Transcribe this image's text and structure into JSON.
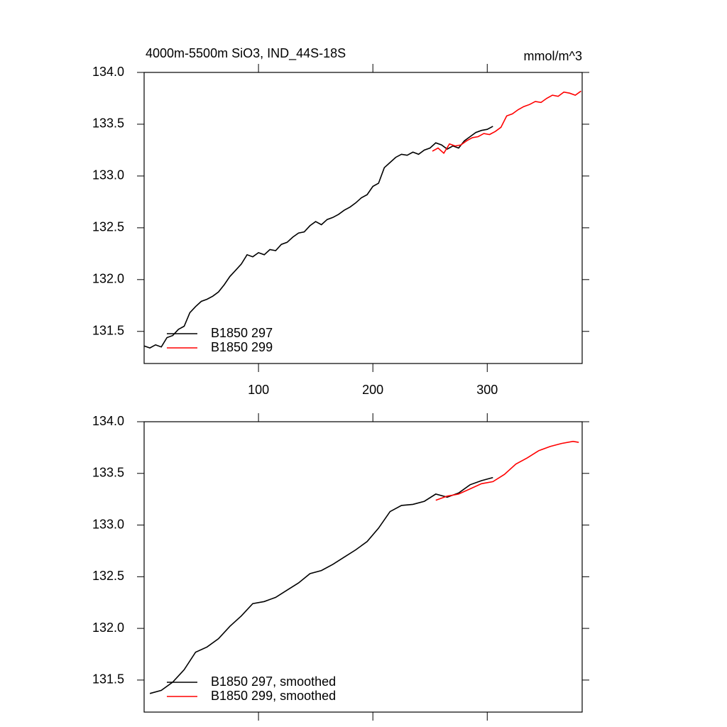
{
  "chart_data": [
    {
      "type": "line",
      "title": "4000m-5500m SiO3, IND_44S-18S",
      "units": "mmol/m^3",
      "xlim": [
        0,
        383
      ],
      "ylim": [
        131.19,
        134.0
      ],
      "xticks": [
        100,
        200,
        300
      ],
      "xtick_labels": true,
      "yticks": [
        {
          "value": 131.5,
          "label": "131.5"
        },
        {
          "value": 132,
          "label": "132.0"
        },
        {
          "value": 132.5,
          "label": "132.5"
        },
        {
          "value": 133,
          "label": "133.0"
        },
        {
          "value": 133.5,
          "label": "133.5"
        },
        {
          "value": 134,
          "label": "134.0"
        }
      ],
      "legend": "lower left",
      "series": [
        {
          "name": "B1850 297",
          "color": "#000000",
          "x": [
            0,
            5,
            10,
            15,
            20,
            25,
            30,
            35,
            40,
            45,
            50,
            55,
            60,
            65,
            70,
            75,
            80,
            85,
            90,
            95,
            100,
            105,
            110,
            115,
            120,
            125,
            130,
            135,
            140,
            145,
            150,
            155,
            160,
            165,
            170,
            175,
            180,
            185,
            190,
            195,
            200,
            205,
            210,
            215,
            220,
            225,
            230,
            235,
            240,
            245,
            250,
            255,
            260,
            265,
            270,
            275,
            280,
            285,
            290,
            295,
            300,
            305
          ],
          "values": [
            131.36,
            131.34,
            131.37,
            131.35,
            131.44,
            131.46,
            131.52,
            131.55,
            131.68,
            131.74,
            131.79,
            131.81,
            131.84,
            131.88,
            131.95,
            132.03,
            132.09,
            132.15,
            132.24,
            132.22,
            132.26,
            132.24,
            132.29,
            132.28,
            132.34,
            132.36,
            132.41,
            132.45,
            132.46,
            132.52,
            132.56,
            132.53,
            132.58,
            132.6,
            132.63,
            132.67,
            132.7,
            132.74,
            132.79,
            132.82,
            132.9,
            132.93,
            133.08,
            133.13,
            133.18,
            133.21,
            133.2,
            133.23,
            133.21,
            133.25,
            133.27,
            133.32,
            133.3,
            133.26,
            133.29,
            133.27,
            133.34,
            133.38,
            133.42,
            133.44,
            133.45,
            133.48
          ]
        },
        {
          "name": "B1850 299",
          "color": "#ff0000",
          "x": [
            252,
            257,
            262,
            267,
            272,
            277,
            282,
            287,
            292,
            297,
            302,
            307,
            312,
            317,
            322,
            327,
            332,
            337,
            342,
            347,
            352,
            357,
            362,
            367,
            372,
            377,
            382
          ],
          "values": [
            133.24,
            133.27,
            133.22,
            133.31,
            133.29,
            133.3,
            133.34,
            133.37,
            133.38,
            133.41,
            133.4,
            133.43,
            133.47,
            133.58,
            133.6,
            133.64,
            133.67,
            133.69,
            133.72,
            133.71,
            133.75,
            133.78,
            133.77,
            133.81,
            133.8,
            133.78,
            133.82
          ]
        }
      ]
    },
    {
      "type": "line",
      "xlim": [
        0,
        383
      ],
      "ylim": [
        131.19,
        134.0
      ],
      "xticks": [
        100,
        200,
        300
      ],
      "xtick_labels": false,
      "yticks": [
        {
          "value": 131.5,
          "label": "131.5"
        },
        {
          "value": 132,
          "label": "132.0"
        },
        {
          "value": 132.5,
          "label": "132.5"
        },
        {
          "value": 133,
          "label": "133.0"
        },
        {
          "value": 133.5,
          "label": "133.5"
        },
        {
          "value": 134,
          "label": "134.0"
        }
      ],
      "legend": "lower left",
      "series": [
        {
          "name": "B1850 297, smoothed",
          "color": "#000000",
          "x": [
            5,
            15,
            25,
            35,
            45,
            55,
            65,
            75,
            85,
            95,
            105,
            115,
            125,
            135,
            145,
            155,
            165,
            175,
            185,
            195,
            205,
            215,
            225,
            235,
            245,
            255,
            265,
            275,
            285,
            295,
            305
          ],
          "values": [
            131.37,
            131.4,
            131.48,
            131.6,
            131.77,
            131.82,
            131.9,
            132.02,
            132.12,
            132.24,
            132.26,
            132.3,
            132.37,
            132.44,
            132.53,
            132.56,
            132.62,
            132.69,
            132.76,
            132.84,
            132.97,
            133.13,
            133.19,
            133.2,
            133.23,
            133.3,
            133.27,
            133.31,
            133.39,
            133.43,
            133.46
          ]
        },
        {
          "name": "B1850 299, smoothed",
          "color": "#ff0000",
          "x": [
            255,
            265,
            275,
            285,
            295,
            305,
            315,
            325,
            335,
            345,
            355,
            365,
            375,
            380
          ],
          "values": [
            133.24,
            133.28,
            133.3,
            133.35,
            133.4,
            133.42,
            133.49,
            133.59,
            133.65,
            133.72,
            133.76,
            133.79,
            133.81,
            133.8
          ]
        }
      ]
    }
  ]
}
